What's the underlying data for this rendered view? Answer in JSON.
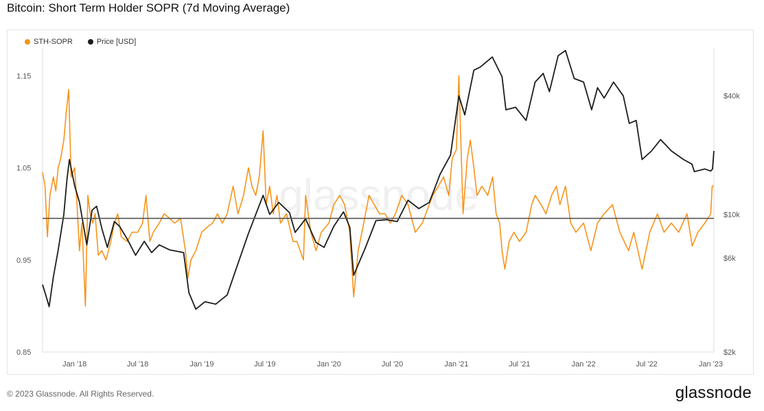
{
  "title": "Bitcoin: Short Term Holder SOPR (7d Moving Average)",
  "footer": {
    "copyright": "© 2023 Glassnode. All Rights Reserved.",
    "logo": "glassnode"
  },
  "watermark": "glassnode",
  "colors": {
    "sopr": "#f7931a",
    "price": "#1c1c1c",
    "baseline": "#555555",
    "axis_text": "#555555"
  },
  "chart_data": {
    "type": "line",
    "title": "Bitcoin: Short Term Holder SOPR (7d Moving Average)",
    "legend_position": "top-left",
    "grid": false,
    "x_ticks": [
      "Jan '18",
      "Jul '18",
      "Jan '19",
      "Jul '19",
      "Jan '20",
      "Jul '20",
      "Jan '21",
      "Jul '21",
      "Jan '22",
      "Jul '22",
      "Jan '23"
    ],
    "x_range": [
      "2017-10-01",
      "2023-01-10"
    ],
    "y_left": {
      "ticks": [
        "0.85",
        "0.95",
        "1.05",
        "1.15"
      ],
      "range": [
        0.85,
        1.18
      ],
      "reference_line": 0.995
    },
    "y_right": {
      "scale": "log",
      "ticks": [
        "$2k",
        "$6k",
        "$10k",
        "$40k"
      ],
      "range": [
        2000,
        70000
      ]
    },
    "series": [
      {
        "name": "STH-SOPR",
        "axis": "left",
        "points": [
          [
            "2017-10-01",
            1.045
          ],
          [
            "2017-10-08",
            1.03
          ],
          [
            "2017-10-15",
            0.975
          ],
          [
            "2017-10-22",
            1.02
          ],
          [
            "2017-11-01",
            1.04
          ],
          [
            "2017-11-08",
            1.025
          ],
          [
            "2017-11-15",
            1.05
          ],
          [
            "2017-11-22",
            1.06
          ],
          [
            "2017-12-01",
            1.08
          ],
          [
            "2017-12-08",
            1.11
          ],
          [
            "2017-12-15",
            1.135
          ],
          [
            "2017-12-22",
            1.04
          ],
          [
            "2018-01-01",
            1.05
          ],
          [
            "2018-01-08",
            1.01
          ],
          [
            "2018-01-15",
            0.96
          ],
          [
            "2018-01-22",
            0.99
          ],
          [
            "2018-02-01",
            0.9
          ],
          [
            "2018-02-08",
            1.02
          ],
          [
            "2018-02-15",
            1.0
          ],
          [
            "2018-02-22",
            0.99
          ],
          [
            "2018-03-01",
            1.0
          ],
          [
            "2018-03-10",
            0.955
          ],
          [
            "2018-03-20",
            0.96
          ],
          [
            "2018-04-01",
            0.95
          ],
          [
            "2018-04-15",
            0.97
          ],
          [
            "2018-04-25",
            0.99
          ],
          [
            "2018-05-05",
            1.0
          ],
          [
            "2018-05-15",
            0.975
          ],
          [
            "2018-06-01",
            0.97
          ],
          [
            "2018-06-15",
            0.98
          ],
          [
            "2018-07-01",
            0.98
          ],
          [
            "2018-07-15",
            0.99
          ],
          [
            "2018-07-25",
            1.02
          ],
          [
            "2018-08-05",
            0.97
          ],
          [
            "2018-08-15",
            0.98
          ],
          [
            "2018-09-01",
            0.99
          ],
          [
            "2018-09-15",
            1.0
          ],
          [
            "2018-10-01",
            0.995
          ],
          [
            "2018-10-15",
            0.99
          ],
          [
            "2018-11-01",
            0.995
          ],
          [
            "2018-11-15",
            0.96
          ],
          [
            "2018-11-22",
            0.93
          ],
          [
            "2018-12-01",
            0.95
          ],
          [
            "2018-12-15",
            0.96
          ],
          [
            "2019-01-01",
            0.98
          ],
          [
            "2019-01-15",
            0.985
          ],
          [
            "2019-02-01",
            0.99
          ],
          [
            "2019-02-15",
            1.0
          ],
          [
            "2019-03-01",
            0.99
          ],
          [
            "2019-03-15",
            1.0
          ],
          [
            "2019-04-01",
            1.03
          ],
          [
            "2019-04-15",
            1.0
          ],
          [
            "2019-05-01",
            1.02
          ],
          [
            "2019-05-15",
            1.05
          ],
          [
            "2019-05-25",
            1.03
          ],
          [
            "2019-06-05",
            1.02
          ],
          [
            "2019-06-15",
            1.04
          ],
          [
            "2019-06-26",
            1.09
          ],
          [
            "2019-07-05",
            1.01
          ],
          [
            "2019-07-15",
            1.03
          ],
          [
            "2019-07-25",
            1.0
          ],
          [
            "2019-08-05",
            1.02
          ],
          [
            "2019-08-15",
            0.99
          ],
          [
            "2019-09-01",
            1.0
          ],
          [
            "2019-09-20",
            0.97
          ],
          [
            "2019-10-01",
            0.97
          ],
          [
            "2019-10-20",
            0.95
          ],
          [
            "2019-10-26",
            1.02
          ],
          [
            "2019-11-10",
            0.98
          ],
          [
            "2019-11-25",
            0.96
          ],
          [
            "2019-12-10",
            0.98
          ],
          [
            "2020-01-01",
            0.99
          ],
          [
            "2020-01-15",
            1.01
          ],
          [
            "2020-02-01",
            1.02
          ],
          [
            "2020-02-15",
            1.01
          ],
          [
            "2020-03-01",
            0.98
          ],
          [
            "2020-03-12",
            0.91
          ],
          [
            "2020-03-25",
            0.96
          ],
          [
            "2020-04-10",
            0.99
          ],
          [
            "2020-04-25",
            1.02
          ],
          [
            "2020-05-10",
            1.01
          ],
          [
            "2020-05-25",
            1.0
          ],
          [
            "2020-06-10",
            1.0
          ],
          [
            "2020-06-25",
            0.99
          ],
          [
            "2020-07-10",
            1.0
          ],
          [
            "2020-07-28",
            1.02
          ],
          [
            "2020-08-15",
            1.01
          ],
          [
            "2020-09-05",
            0.98
          ],
          [
            "2020-09-25",
            0.99
          ],
          [
            "2020-10-15",
            1.01
          ],
          [
            "2020-10-25",
            1.02
          ],
          [
            "2020-11-10",
            1.03
          ],
          [
            "2020-11-25",
            1.04
          ],
          [
            "2020-12-10",
            1.02
          ],
          [
            "2020-12-20",
            1.06
          ],
          [
            "2021-01-01",
            1.07
          ],
          [
            "2021-01-08",
            1.15
          ],
          [
            "2021-01-20",
            1.0
          ],
          [
            "2021-02-01",
            1.06
          ],
          [
            "2021-02-10",
            1.08
          ],
          [
            "2021-02-20",
            1.05
          ],
          [
            "2021-03-01",
            1.02
          ],
          [
            "2021-03-15",
            1.03
          ],
          [
            "2021-04-01",
            1.02
          ],
          [
            "2021-04-15",
            1.04
          ],
          [
            "2021-04-25",
            1.0
          ],
          [
            "2021-05-05",
            0.99
          ],
          [
            "2021-05-12",
            0.96
          ],
          [
            "2021-05-20",
            0.94
          ],
          [
            "2021-06-01",
            0.97
          ],
          [
            "2021-06-15",
            0.98
          ],
          [
            "2021-07-01",
            0.97
          ],
          [
            "2021-07-20",
            0.98
          ],
          [
            "2021-08-05",
            1.01
          ],
          [
            "2021-08-15",
            1.02
          ],
          [
            "2021-09-01",
            1.01
          ],
          [
            "2021-09-15",
            1.0
          ],
          [
            "2021-10-01",
            1.02
          ],
          [
            "2021-10-15",
            1.03
          ],
          [
            "2021-10-25",
            1.01
          ],
          [
            "2021-11-10",
            1.03
          ],
          [
            "2021-11-25",
            0.99
          ],
          [
            "2021-12-10",
            0.98
          ],
          [
            "2022-01-01",
            0.99
          ],
          [
            "2022-01-22",
            0.96
          ],
          [
            "2022-02-10",
            0.99
          ],
          [
            "2022-03-01",
            1.0
          ],
          [
            "2022-03-25",
            1.01
          ],
          [
            "2022-04-15",
            0.98
          ],
          [
            "2022-05-10",
            0.96
          ],
          [
            "2022-05-25",
            0.98
          ],
          [
            "2022-06-18",
            0.94
          ],
          [
            "2022-07-10",
            0.98
          ],
          [
            "2022-08-01",
            1.0
          ],
          [
            "2022-08-20",
            0.98
          ],
          [
            "2022-09-10",
            0.99
          ],
          [
            "2022-10-01",
            0.98
          ],
          [
            "2022-10-25",
            1.0
          ],
          [
            "2022-11-09",
            0.965
          ],
          [
            "2022-11-25",
            0.98
          ],
          [
            "2022-12-15",
            0.99
          ],
          [
            "2023-01-01",
            1.0
          ],
          [
            "2023-01-05",
            1.03
          ],
          [
            "2023-01-10",
            1.03
          ]
        ]
      },
      {
        "name": "Price [USD]",
        "axis": "right",
        "points": [
          [
            "2017-10-01",
            4400
          ],
          [
            "2017-10-10",
            3900
          ],
          [
            "2017-10-20",
            3400
          ],
          [
            "2017-11-01",
            4800
          ],
          [
            "2017-11-15",
            6600
          ],
          [
            "2017-12-01",
            10000
          ],
          [
            "2017-12-10",
            15000
          ],
          [
            "2017-12-17",
            19000
          ],
          [
            "2018-01-01",
            14000
          ],
          [
            "2018-01-15",
            11500
          ],
          [
            "2018-02-05",
            7000
          ],
          [
            "2018-02-20",
            10500
          ],
          [
            "2018-03-05",
            11000
          ],
          [
            "2018-03-20",
            8500
          ],
          [
            "2018-04-05",
            6800
          ],
          [
            "2018-04-25",
            9200
          ],
          [
            "2018-05-10",
            8700
          ],
          [
            "2018-06-01",
            7500
          ],
          [
            "2018-06-25",
            6200
          ],
          [
            "2018-07-20",
            7300
          ],
          [
            "2018-08-10",
            6400
          ],
          [
            "2018-09-01",
            7000
          ],
          [
            "2018-10-01",
            6600
          ],
          [
            "2018-11-10",
            6400
          ],
          [
            "2018-11-25",
            4000
          ],
          [
            "2018-12-15",
            3300
          ],
          [
            "2019-01-10",
            3600
          ],
          [
            "2019-02-10",
            3500
          ],
          [
            "2019-03-15",
            3900
          ],
          [
            "2019-04-05",
            5000
          ],
          [
            "2019-05-15",
            8000
          ],
          [
            "2019-06-26",
            12500
          ],
          [
            "2019-07-15",
            10000
          ],
          [
            "2019-08-10",
            11500
          ],
          [
            "2019-09-10",
            10200
          ],
          [
            "2019-09-26",
            8100
          ],
          [
            "2019-10-26",
            9500
          ],
          [
            "2019-11-25",
            7200
          ],
          [
            "2019-12-18",
            6800
          ],
          [
            "2020-01-15",
            8700
          ],
          [
            "2020-02-12",
            10300
          ],
          [
            "2020-03-01",
            8600
          ],
          [
            "2020-03-12",
            4900
          ],
          [
            "2020-04-15",
            6800
          ],
          [
            "2020-05-15",
            9300
          ],
          [
            "2020-06-15",
            9400
          ],
          [
            "2020-07-15",
            9200
          ],
          [
            "2020-08-15",
            11800
          ],
          [
            "2020-09-15",
            10700
          ],
          [
            "2020-10-15",
            11500
          ],
          [
            "2020-11-15",
            16000
          ],
          [
            "2020-12-15",
            20000
          ],
          [
            "2021-01-08",
            40000
          ],
          [
            "2021-01-25",
            32000
          ],
          [
            "2021-02-20",
            54000
          ],
          [
            "2021-03-10",
            56000
          ],
          [
            "2021-04-14",
            63000
          ],
          [
            "2021-05-12",
            50000
          ],
          [
            "2021-05-23",
            34000
          ],
          [
            "2021-06-20",
            35000
          ],
          [
            "2021-07-20",
            30000
          ],
          [
            "2021-08-15",
            47000
          ],
          [
            "2021-09-07",
            52000
          ],
          [
            "2021-09-25",
            42000
          ],
          [
            "2021-10-20",
            64000
          ],
          [
            "2021-11-10",
            68000
          ],
          [
            "2021-12-05",
            49000
          ],
          [
            "2022-01-01",
            47000
          ],
          [
            "2022-01-24",
            34000
          ],
          [
            "2022-02-10",
            44000
          ],
          [
            "2022-03-01",
            39000
          ],
          [
            "2022-03-28",
            47000
          ],
          [
            "2022-04-25",
            40000
          ],
          [
            "2022-05-12",
            29000
          ],
          [
            "2022-06-01",
            30000
          ],
          [
            "2022-06-18",
            19000
          ],
          [
            "2022-07-15",
            21000
          ],
          [
            "2022-08-10",
            24000
          ],
          [
            "2022-09-10",
            21000
          ],
          [
            "2022-10-15",
            19000
          ],
          [
            "2022-11-08",
            18000
          ],
          [
            "2022-11-15",
            16500
          ],
          [
            "2022-12-15",
            17000
          ],
          [
            "2023-01-01",
            16600
          ],
          [
            "2023-01-06",
            17000
          ],
          [
            "2023-01-10",
            21000
          ]
        ]
      }
    ]
  }
}
